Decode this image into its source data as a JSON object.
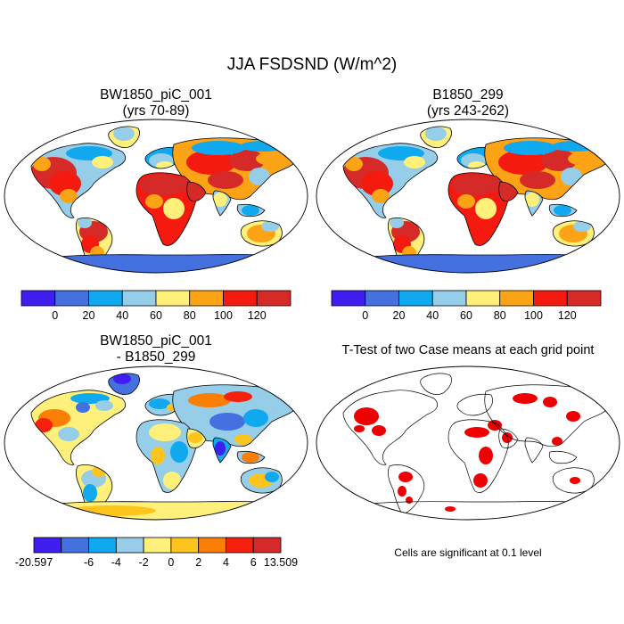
{
  "main_title": "JJA FSDSND (W/m^2)",
  "panels": [
    {
      "title_line1": "BW1850_piC_001",
      "title_line2": "(yrs 70-89)"
    },
    {
      "title_line1": "B1850_299",
      "title_line2": "(yrs 243-262)"
    },
    {
      "title_line1": "BW1850_piC_001",
      "title_line2": "- B1850_299"
    },
    {
      "title_line1": "T-Test of two Case means at each grid point",
      "title_line2": ""
    }
  ],
  "significance_note": "Cells are significant at 0.1 level",
  "colors": {
    "abs_palette": [
      "#3f1ff0",
      "#4470e0",
      "#10a8ee",
      "#96cde8",
      "#fef07a",
      "#fca316",
      "#f51a0f",
      "#d62a29"
    ],
    "diff_palette": [
      "#3f1ff0",
      "#4470e0",
      "#10a8ee",
      "#96cde8",
      "#fef07a",
      "#fcc41c",
      "#fb7f06",
      "#f5200d",
      "#d62a29"
    ],
    "significant": "#ee0000",
    "ocean": "#ffffff",
    "coast": "#000000"
  },
  "chart_data": [
    {
      "type": "heatmap",
      "title": "BW1850_piC_001 (yrs 70-89)",
      "projection": "robinson",
      "colorbar_ticks": [
        "0",
        "20",
        "40",
        "60",
        "80",
        "100",
        "120"
      ],
      "colorbar_bounds": [
        0,
        20,
        40,
        60,
        80,
        100,
        120
      ]
    },
    {
      "type": "heatmap",
      "title": "B1850_299 (yrs 243-262)",
      "projection": "robinson",
      "colorbar_ticks": [
        "0",
        "20",
        "40",
        "60",
        "80",
        "100",
        "120"
      ],
      "colorbar_bounds": [
        0,
        20,
        40,
        60,
        80,
        100,
        120
      ]
    },
    {
      "type": "heatmap",
      "title": "BW1850_piC_001 - B1850_299",
      "projection": "robinson",
      "colorbar_ticks": [
        "-20.597",
        "-6",
        "-4",
        "-2",
        "0",
        "2",
        "4",
        "6",
        "13.509"
      ],
      "colorbar_min": -20.597,
      "colorbar_max": 13.509
    },
    {
      "type": "heatmap",
      "title": "T-Test of two Case means at each grid point",
      "projection": "robinson",
      "significance_level": 0.1
    }
  ]
}
